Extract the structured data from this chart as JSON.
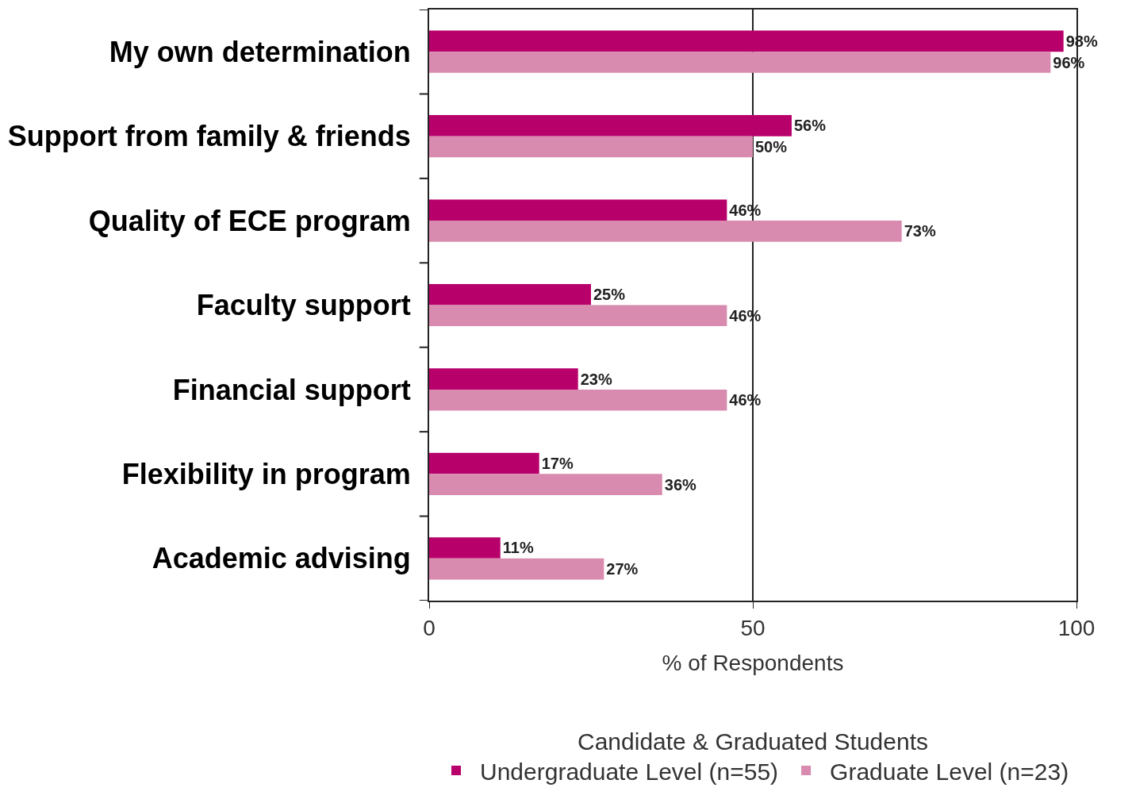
{
  "chart_data": {
    "type": "bar",
    "orientation": "horizontal",
    "xlabel": "% of Respondents",
    "legend_title": "Candidate & Graduated Students",
    "categories": [
      "My own determination",
      "Support from family & friends",
      "Quality of ECE program",
      "Faculty support",
      "Financial support",
      "Flexibility in program",
      "Academic advising"
    ],
    "series": [
      {
        "name": "Undergraduate Level (n=55)",
        "color": "#b8006b",
        "values": [
          98,
          56,
          46,
          25,
          23,
          17,
          11
        ],
        "value_labels": [
          "98%",
          "56%",
          "46%",
          "25%",
          "23%",
          "17%",
          "11%"
        ]
      },
      {
        "name": "Graduate Level (n=23)",
        "color": "#d88bae",
        "values": [
          96,
          50,
          73,
          46,
          46,
          36,
          27
        ],
        "value_labels": [
          "96%",
          "50%",
          "73%",
          "46%",
          "46%",
          "36%",
          "27%"
        ]
      }
    ],
    "xlim": [
      0,
      100
    ],
    "xticks": [
      0,
      50,
      100
    ],
    "grid": "x",
    "legend": "bottom"
  }
}
